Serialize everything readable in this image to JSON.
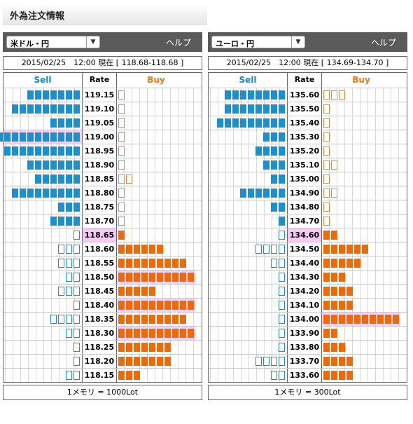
{
  "title": "外為注文情報",
  "header_labels": {
    "sell": "Sell",
    "rate": "Rate",
    "buy": "Buy"
  },
  "colors": {
    "sell": "#1a90d0",
    "buy": "#f06a00",
    "highlight": "#f9c8f4"
  },
  "panels": [
    {
      "pair": "米ドル・円",
      "help": "ヘルプ",
      "info": "2015/02/25　12:00 現在 [ 118.68-118.68 ]",
      "footer": "1メモリ = 1000Lot",
      "rows": [
        {
          "rate": "119.15",
          "sell": 7,
          "sell_o": 0,
          "buy": 0,
          "buy_o": 1
        },
        {
          "rate": "119.10",
          "sell": 9,
          "sell_o": 0,
          "buy": 0,
          "buy_o": 1
        },
        {
          "rate": "119.05",
          "sell": 4,
          "sell_o": 0,
          "buy": 0,
          "buy_o": 1
        },
        {
          "rate": "119.00",
          "sell": 11,
          "sell_o": 0,
          "buy": 0,
          "buy_o": 1,
          "sell_hl": true
        },
        {
          "rate": "118.95",
          "sell": 10,
          "sell_o": 0,
          "buy": 0,
          "buy_o": 1
        },
        {
          "rate": "118.90",
          "sell": 7,
          "sell_o": 0,
          "buy": 0,
          "buy_o": 1
        },
        {
          "rate": "118.85",
          "sell": 6,
          "sell_o": 0,
          "buy": 0,
          "buy_o": 2
        },
        {
          "rate": "118.80",
          "sell": 9,
          "sell_o": 0,
          "buy": 0,
          "buy_o": 1
        },
        {
          "rate": "118.75",
          "sell": 3,
          "sell_o": 0,
          "buy": 0,
          "buy_o": 1
        },
        {
          "rate": "118.70",
          "sell": 4,
          "sell_o": 0,
          "buy": 0,
          "buy_o": 1
        },
        {
          "rate": "118.65",
          "sell": 0,
          "sell_o": 1,
          "buy": 1,
          "buy_o": 0,
          "rate_hl": true
        },
        {
          "rate": "118.60",
          "sell": 0,
          "sell_o": 3,
          "buy": 6,
          "buy_o": 0
        },
        {
          "rate": "118.55",
          "sell": 0,
          "sell_o": 3,
          "buy": 9,
          "buy_o": 0
        },
        {
          "rate": "118.50",
          "sell": 0,
          "sell_o": 2,
          "buy": 10,
          "buy_o": 0,
          "buy_hl": true
        },
        {
          "rate": "118.45",
          "sell": 0,
          "sell_o": 3,
          "buy": 5,
          "buy_o": 0
        },
        {
          "rate": "118.40",
          "sell": 0,
          "sell_o": 1,
          "buy": 10,
          "buy_o": 0,
          "buy_hl": true
        },
        {
          "rate": "118.35",
          "sell": 0,
          "sell_o": 4,
          "buy": 9,
          "buy_o": 0
        },
        {
          "rate": "118.30",
          "sell": 0,
          "sell_o": 2,
          "buy": 10,
          "buy_o": 0,
          "buy_hl": true
        },
        {
          "rate": "118.25",
          "sell": 0,
          "sell_o": 1,
          "buy": 7,
          "buy_o": 0
        },
        {
          "rate": "118.20",
          "sell": 0,
          "sell_o": 1,
          "buy": 7,
          "buy_o": 0
        },
        {
          "rate": "118.15",
          "sell": 0,
          "sell_o": 2,
          "buy": 3,
          "buy_o": 0
        }
      ]
    },
    {
      "pair": "ユーロ・円",
      "help": "ヘルプ",
      "info": "2015/02/25　12:00 現在 [ 134.69-134.70 ]",
      "footer": "1メモリ = 300Lot",
      "rows": [
        {
          "rate": "135.60",
          "sell": 8,
          "sell_o": 0,
          "buy": 0,
          "buy_o": 3
        },
        {
          "rate": "135.50",
          "sell": 8,
          "sell_o": 0,
          "buy": 0,
          "buy_o": 1
        },
        {
          "rate": "135.40",
          "sell": 9,
          "sell_o": 0,
          "buy": 0,
          "buy_o": 1
        },
        {
          "rate": "135.30",
          "sell": 3,
          "sell_o": 0,
          "buy": 0,
          "buy_o": 1
        },
        {
          "rate": "135.20",
          "sell": 4,
          "sell_o": 0,
          "buy": 0,
          "buy_o": 1
        },
        {
          "rate": "135.10",
          "sell": 3,
          "sell_o": 0,
          "buy": 0,
          "buy_o": 2
        },
        {
          "rate": "135.00",
          "sell": 2,
          "sell_o": 0,
          "buy": 0,
          "buy_o": 1
        },
        {
          "rate": "134.90",
          "sell": 6,
          "sell_o": 0,
          "buy": 0,
          "buy_o": 2
        },
        {
          "rate": "134.80",
          "sell": 2,
          "sell_o": 0,
          "buy": 0,
          "buy_o": 1
        },
        {
          "rate": "134.70",
          "sell": 1,
          "sell_o": 0,
          "buy": 0,
          "buy_o": 1
        },
        {
          "rate": "134.60",
          "sell": 0,
          "sell_o": 1,
          "buy": 2,
          "buy_o": 0,
          "rate_hl": true
        },
        {
          "rate": "134.50",
          "sell": 0,
          "sell_o": 4,
          "buy": 6,
          "buy_o": 0
        },
        {
          "rate": "134.40",
          "sell": 0,
          "sell_o": 2,
          "buy": 5,
          "buy_o": 0
        },
        {
          "rate": "134.30",
          "sell": 0,
          "sell_o": 1,
          "buy": 3,
          "buy_o": 0
        },
        {
          "rate": "134.20",
          "sell": 0,
          "sell_o": 1,
          "buy": 4,
          "buy_o": 0
        },
        {
          "rate": "134.10",
          "sell": 0,
          "sell_o": 1,
          "buy": 4,
          "buy_o": 0
        },
        {
          "rate": "134.00",
          "sell": 0,
          "sell_o": 1,
          "buy": 10,
          "buy_o": 0,
          "buy_hl": true
        },
        {
          "rate": "133.90",
          "sell": 0,
          "sell_o": 1,
          "buy": 2,
          "buy_o": 0
        },
        {
          "rate": "133.80",
          "sell": 0,
          "sell_o": 1,
          "buy": 3,
          "buy_o": 0
        },
        {
          "rate": "133.70",
          "sell": 0,
          "sell_o": 4,
          "buy": 4,
          "buy_o": 0
        },
        {
          "rate": "133.60",
          "sell": 0,
          "sell_o": 2,
          "buy": 4,
          "buy_o": 0
        }
      ]
    }
  ]
}
